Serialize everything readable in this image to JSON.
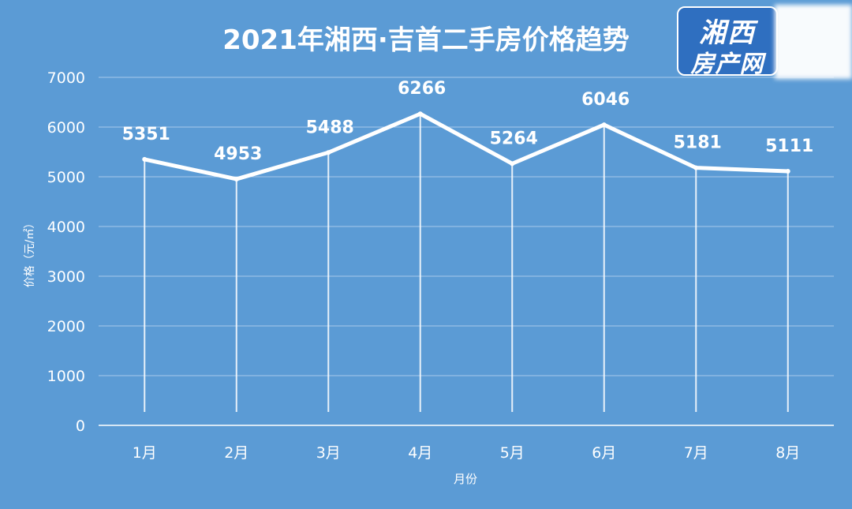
{
  "chart_data": {
    "type": "line",
    "title": "2021年湘西·吉首二手房价格趋势",
    "xlabel": "月份",
    "ylabel": "价格（元/㎡）",
    "categories": [
      "1月",
      "2月",
      "3月",
      "4月",
      "5月",
      "6月",
      "7月",
      "8月"
    ],
    "series": [
      {
        "values": [
          5351,
          4953,
          5488,
          6266,
          5264,
          6046,
          5181,
          5111
        ]
      }
    ],
    "ylim": [
      0,
      7000
    ],
    "yticks": [
      "0",
      "1000",
      "2000",
      "3000",
      "4000",
      "5000",
      "6000",
      "7000"
    ],
    "grid": true,
    "data_labels": true,
    "colors": {
      "background": "#5b9bd5",
      "line": "#ffffff",
      "grid": "#a7c8ea"
    }
  },
  "watermark": {
    "line1": "湘西",
    "line2": "房产网"
  }
}
